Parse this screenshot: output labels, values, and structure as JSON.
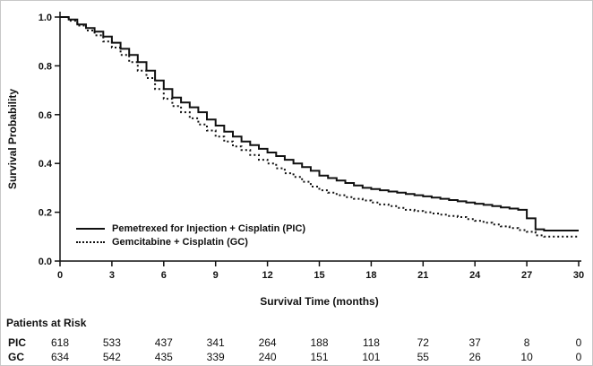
{
  "colors": {
    "line": "#111111",
    "axis": "#111111",
    "text": "#111111",
    "background": "#ffffff"
  },
  "chart_data": {
    "type": "line",
    "subtype": "kaplan-meier-step",
    "title": "",
    "xlabel": "Survival Time (months)",
    "ylabel": "Survival Probability",
    "xlim": [
      0,
      30
    ],
    "ylim": [
      0.0,
      1.0
    ],
    "x_ticks": [
      0,
      3,
      6,
      9,
      12,
      15,
      18,
      21,
      24,
      27,
      30
    ],
    "y_ticks": [
      0.0,
      0.2,
      0.4,
      0.6,
      0.8,
      1.0
    ],
    "grid": false,
    "legend_position": "lower-left-inside",
    "series": [
      {
        "name": "Pemetrexed for Injection + Cisplatin (PIC)",
        "style": "solid",
        "x": [
          0,
          0.5,
          1,
          1.5,
          2,
          2.5,
          3,
          3.5,
          4,
          4.5,
          5,
          5.5,
          6,
          6.5,
          7,
          7.5,
          8,
          8.5,
          9,
          9.5,
          10,
          10.5,
          11,
          11.5,
          12,
          12.5,
          13,
          13.5,
          14,
          14.5,
          15,
          15.5,
          16,
          16.5,
          17,
          17.5,
          18,
          18.5,
          19,
          19.5,
          20,
          20.5,
          21,
          21.5,
          22,
          22.5,
          23,
          23.5,
          24,
          24.5,
          25,
          25.5,
          26,
          26.5,
          27,
          27.5,
          28,
          30
        ],
        "y": [
          1.0,
          0.99,
          0.97,
          0.955,
          0.94,
          0.92,
          0.895,
          0.87,
          0.845,
          0.815,
          0.78,
          0.74,
          0.705,
          0.67,
          0.65,
          0.63,
          0.61,
          0.58,
          0.555,
          0.53,
          0.51,
          0.49,
          0.475,
          0.46,
          0.445,
          0.43,
          0.415,
          0.4,
          0.385,
          0.37,
          0.35,
          0.34,
          0.33,
          0.32,
          0.31,
          0.3,
          0.295,
          0.29,
          0.285,
          0.28,
          0.275,
          0.27,
          0.265,
          0.26,
          0.255,
          0.25,
          0.245,
          0.24,
          0.235,
          0.23,
          0.225,
          0.22,
          0.215,
          0.21,
          0.175,
          0.13,
          0.125,
          0.125
        ]
      },
      {
        "name": "Gemcitabine + Cisplatin (GC)",
        "style": "dotted",
        "x": [
          0,
          0.5,
          1,
          1.5,
          2,
          2.5,
          3,
          3.5,
          4,
          4.5,
          5,
          5.5,
          6,
          6.5,
          7,
          7.5,
          8,
          8.5,
          9,
          9.5,
          10,
          10.5,
          11,
          11.5,
          12,
          12.5,
          13,
          13.5,
          14,
          14.5,
          15,
          15.5,
          16,
          16.5,
          17,
          17.5,
          18,
          18.5,
          19,
          19.5,
          20,
          20.5,
          21,
          21.5,
          22,
          22.5,
          23,
          23.5,
          24,
          24.5,
          25,
          25.5,
          26,
          26.5,
          27,
          27.5,
          28,
          30
        ],
        "y": [
          1.0,
          0.985,
          0.965,
          0.945,
          0.925,
          0.9,
          0.875,
          0.845,
          0.815,
          0.78,
          0.75,
          0.705,
          0.665,
          0.635,
          0.61,
          0.585,
          0.56,
          0.535,
          0.51,
          0.49,
          0.47,
          0.455,
          0.435,
          0.415,
          0.4,
          0.38,
          0.36,
          0.345,
          0.325,
          0.305,
          0.29,
          0.28,
          0.27,
          0.262,
          0.255,
          0.248,
          0.24,
          0.232,
          0.225,
          0.218,
          0.21,
          0.205,
          0.2,
          0.195,
          0.19,
          0.185,
          0.18,
          0.172,
          0.165,
          0.157,
          0.15,
          0.142,
          0.135,
          0.127,
          0.12,
          0.105,
          0.1,
          0.1
        ]
      }
    ]
  },
  "at_risk": {
    "heading": "Patients at Risk",
    "time_points": [
      0,
      3,
      6,
      9,
      12,
      15,
      18,
      21,
      24,
      27,
      30
    ],
    "rows": [
      {
        "label": "PIC",
        "counts": [
          618,
          533,
          437,
          341,
          264,
          188,
          118,
          72,
          37,
          8,
          0
        ]
      },
      {
        "label": "GC",
        "counts": [
          634,
          542,
          435,
          339,
          240,
          151,
          101,
          55,
          26,
          10,
          0
        ]
      }
    ]
  }
}
